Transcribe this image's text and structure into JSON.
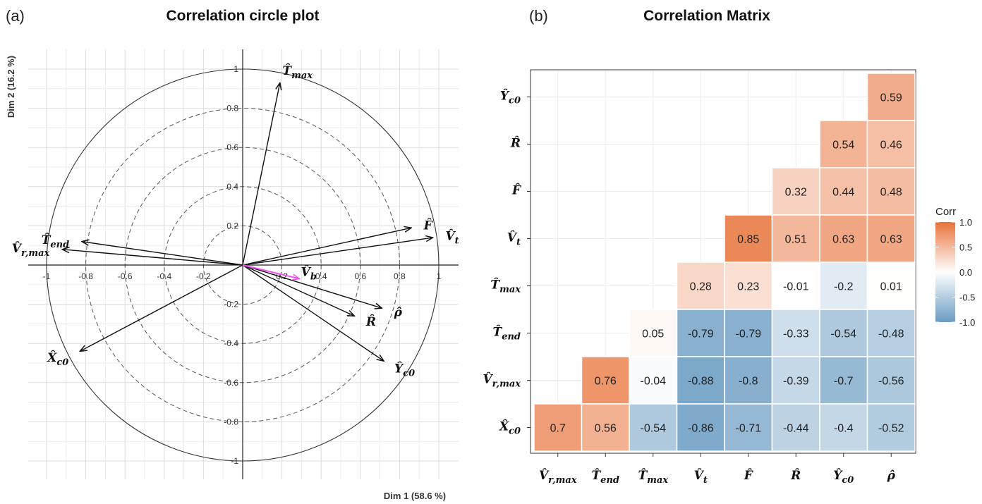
{
  "chart_data": [
    {
      "type": "scatter",
      "subtype": "correlation-circle",
      "panel": "(a)",
      "title": "Correlation circle plot",
      "xlabel": "Dim 1 (58.6 %)",
      "ylabel": "Dim 2 (16.2 %)",
      "xlim": [
        -1,
        1
      ],
      "ylim": [
        -1,
        1
      ],
      "x_ticks": [
        "-1",
        "-0.8",
        "-0.6",
        "-0.4",
        "-0.2",
        "0.2",
        "0.4",
        "0.6",
        "0.8",
        "1"
      ],
      "y_ticks": [
        "1",
        "0.8",
        "0.6",
        "0.4",
        "0.2",
        "-0.2",
        "-0.4",
        "-0.6",
        "-0.8",
        "-1"
      ],
      "circle_radii": [
        0.2,
        0.4,
        0.6,
        0.8,
        1.0
      ],
      "series": [
        {
          "name": "T̂max",
          "x": 0.19,
          "y": 0.93,
          "color": "#111111"
        },
        {
          "name": "F̂",
          "x": 0.86,
          "y": 0.19,
          "color": "#111111"
        },
        {
          "name": "V̂t",
          "x": 0.97,
          "y": 0.14,
          "color": "#111111"
        },
        {
          "name": "T̂end",
          "x": -0.82,
          "y": 0.12,
          "color": "#111111"
        },
        {
          "name": "V̂r,max",
          "x": -0.92,
          "y": 0.08,
          "color": "#111111"
        },
        {
          "name": "ρ̂",
          "x": 0.71,
          "y": -0.22,
          "color": "#111111"
        },
        {
          "name": "R̂",
          "x": 0.57,
          "y": -0.26,
          "color": "#111111"
        },
        {
          "name": "Ŷc0",
          "x": 0.72,
          "y": -0.49,
          "color": "#111111"
        },
        {
          "name": "X̂c0",
          "x": -0.83,
          "y": -0.44,
          "color": "#111111"
        },
        {
          "name": "V̂b",
          "x": 0.29,
          "y": -0.07,
          "color": "#EE55EE"
        }
      ]
    },
    {
      "type": "heatmap",
      "panel": "(b)",
      "title": "Correlation Matrix",
      "x_labels": [
        "V̂r,max",
        "T̂end",
        "T̂max",
        "V̂t",
        "F̂",
        "R̂",
        "Ŷc0",
        "ρ̂"
      ],
      "y_labels": [
        "Ŷc0",
        "R̂",
        "F̂",
        "V̂t",
        "T̂max",
        "T̂end",
        "V̂r,max",
        "X̂c0"
      ],
      "values": [
        [
          null,
          null,
          null,
          null,
          null,
          null,
          null,
          0.59
        ],
        [
          null,
          null,
          null,
          null,
          null,
          null,
          0.54,
          0.46
        ],
        [
          null,
          null,
          null,
          null,
          null,
          0.32,
          0.44,
          0.48
        ],
        [
          null,
          null,
          null,
          null,
          0.85,
          0.51,
          0.63,
          0.63
        ],
        [
          null,
          null,
          null,
          0.28,
          0.23,
          -0.01,
          -0.2,
          0.01
        ],
        [
          null,
          null,
          0.05,
          -0.79,
          -0.79,
          -0.33,
          -0.54,
          -0.48
        ],
        [
          null,
          0.76,
          -0.04,
          -0.88,
          -0.8,
          -0.39,
          -0.7,
          -0.56
        ],
        [
          0.7,
          0.56,
          -0.54,
          -0.86,
          -0.71,
          -0.44,
          -0.4,
          -0.52
        ]
      ],
      "legend": {
        "title": "Corr",
        "ticks": [
          "1.0",
          "0.5",
          "0.0",
          "-0.5",
          "-1.0"
        ],
        "range": [
          -1,
          1
        ],
        "high_color": "#E8733B",
        "mid_color": "#FFFFFF",
        "low_color": "#6A9CC2"
      }
    }
  ]
}
